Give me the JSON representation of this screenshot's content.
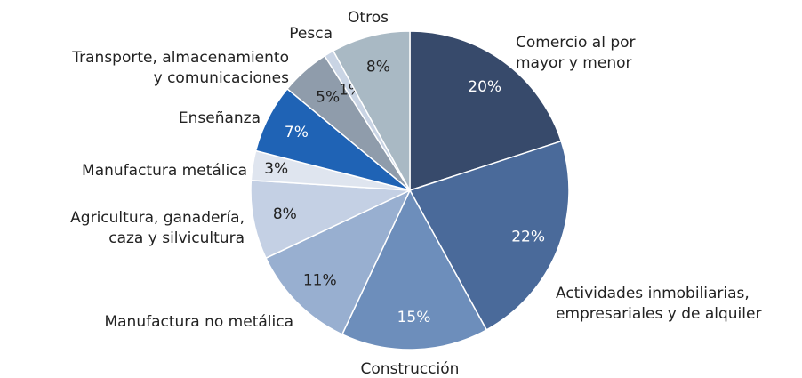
{
  "chart_data": {
    "type": "pie",
    "categories": [
      "Comercio al por\nmayor y menor",
      "Actividades inmobiliarias,\nempresariales y de alquiler",
      "Construcción",
      "Manufactura no metálica",
      "Agricultura, ganadería,\ncaza y silvicultura",
      "Manufactura metálica",
      "Enseñanza",
      "Transporte, almacenamiento\ny comunicaciones",
      "Pesca",
      "Otros"
    ],
    "values": [
      20,
      22,
      15,
      11,
      8,
      3,
      7,
      5,
      1,
      8
    ],
    "value_labels": [
      "20%",
      "22%",
      "15%",
      "11%",
      "8%",
      "3%",
      "7%",
      "5%",
      "1%",
      "8%"
    ],
    "colors": [
      "#374a6b",
      "#4a6a9a",
      "#6d8ebb",
      "#98afd0",
      "#c4d0e4",
      "#dfe5ef",
      "#1f63b5",
      "#8f9cab",
      "#c9d4e4",
      "#a9b9c4"
    ]
  }
}
